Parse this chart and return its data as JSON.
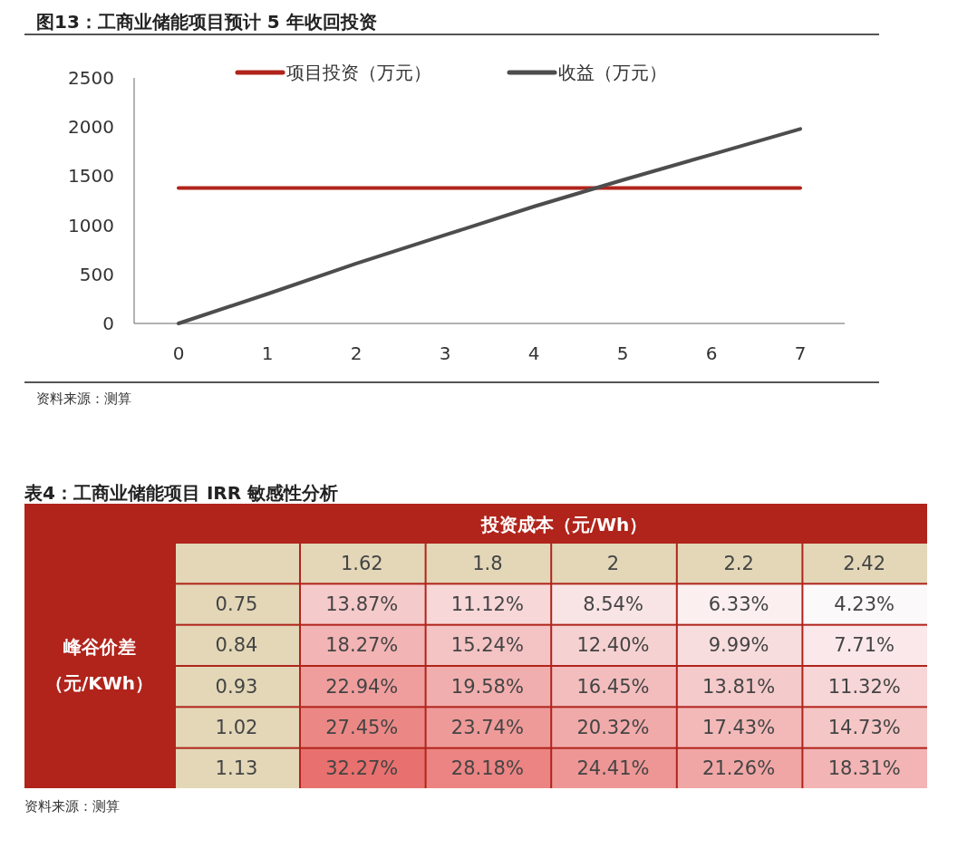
{
  "chart_data": [
    {
      "type": "line",
      "title": "图13：工商业储能项目预计 5 年收回投资",
      "x": [
        0,
        1,
        2,
        3,
        4,
        5,
        6,
        7
      ],
      "xlim": [
        -0.5,
        7.5
      ],
      "xticks": [
        0,
        1,
        2,
        3,
        4,
        5,
        6,
        7
      ],
      "ylim": [
        0,
        2500
      ],
      "yticks": [
        0,
        500,
        1000,
        1500,
        2000,
        2500
      ],
      "grid": false,
      "legend": "top",
      "marker": "none",
      "line_style": "solid",
      "series": [
        {
          "name": "项目投资（万元）",
          "color": "#b0241b",
          "values": [
            1380,
            1380,
            1380,
            1380,
            1380,
            1380,
            1380,
            1380
          ]
        },
        {
          "name": "收益（万元）",
          "color": "#4d4d4d",
          "values": [
            0,
            300,
            610,
            900,
            1190,
            1460,
            1720,
            1980
          ]
        }
      ],
      "annotations": [
        "资料来源：测算"
      ]
    },
    {
      "type": "heatmap",
      "title": "表4：工商业储能项目 IRR 敏感性分析",
      "xlabel": "投资成本（元/Wh）",
      "ylabel": "峰谷价差（元/KWh）",
      "categories": [
        "1.62",
        "1.8",
        "2",
        "2.2",
        "2.42"
      ],
      "y_categories": [
        "0.75",
        "0.84",
        "0.93",
        "1.02",
        "1.13"
      ],
      "cells": [
        [
          13.87,
          11.12,
          8.54,
          6.33,
          4.23
        ],
        [
          18.27,
          15.24,
          12.4,
          9.99,
          7.71
        ],
        [
          22.94,
          19.58,
          16.45,
          13.81,
          11.32
        ],
        [
          27.45,
          23.74,
          20.32,
          17.43,
          14.73
        ],
        [
          32.27,
          28.18,
          24.41,
          21.26,
          18.31
        ]
      ],
      "cell_labels": [
        [
          "13.87%",
          "11.12%",
          "8.54%",
          "6.33%",
          "4.23%"
        ],
        [
          "18.27%",
          "15.24%",
          "12.40%",
          "9.99%",
          "7.71%"
        ],
        [
          "22.94%",
          "19.58%",
          "16.45%",
          "13.81%",
          "11.32%"
        ],
        [
          "27.45%",
          "23.74%",
          "20.32%",
          "17.43%",
          "14.73%"
        ],
        [
          "32.27%",
          "28.18%",
          "24.41%",
          "21.26%",
          "18.31%"
        ]
      ],
      "colors": [
        "#fcf9fb",
        "#e8706e"
      ],
      "annotations": [
        "资料来源：测算"
      ]
    }
  ]
}
